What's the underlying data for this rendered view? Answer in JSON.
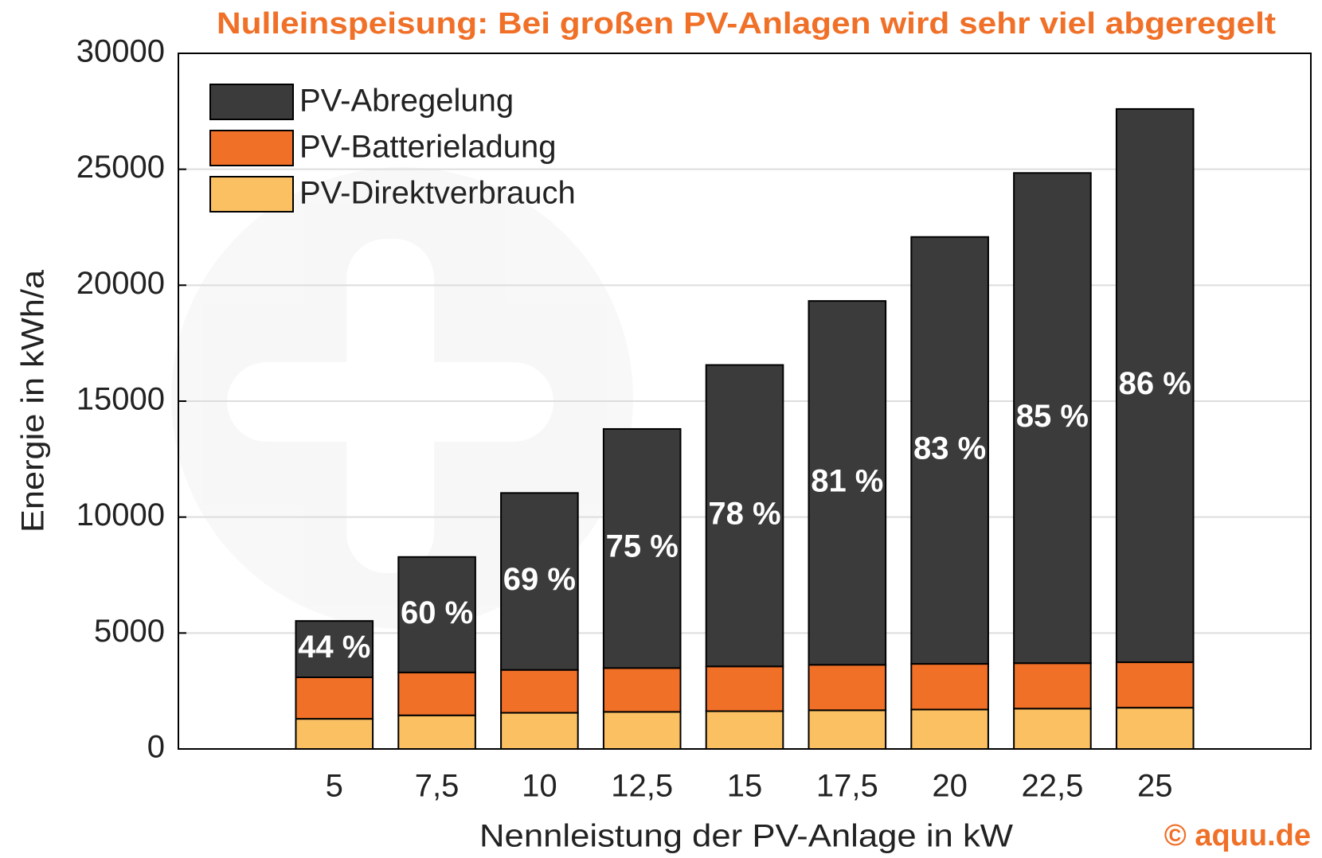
{
  "chart_data": {
    "type": "stacked_bar",
    "title": "Nulleinspeisung: Bei großen PV-Anlagen wird sehr viel abgeregelt",
    "x_label": "Nennleistung der PV-Anlage in kW",
    "y_label": "Energie in kWh/a",
    "source": "© aquu.de",
    "categories": [
      "5",
      "7,5",
      "10",
      "12,5",
      "15",
      "17,5",
      "20",
      "22,5",
      "25"
    ],
    "series": [
      {
        "name": "PV-Direktverbrauch",
        "color": "#fac062",
        "values": [
          1300,
          1450,
          1560,
          1600,
          1630,
          1670,
          1700,
          1740,
          1780
        ]
      },
      {
        "name": "PV-Batterieladung",
        "color": "#f07028",
        "values": [
          1790,
          1850,
          1850,
          1890,
          1930,
          1960,
          1970,
          1960,
          1960
        ]
      },
      {
        "name": "PV-Abregelung",
        "color": "#3b3b3b",
        "values": [
          2430,
          4980,
          7630,
          10310,
          13000,
          15690,
          18410,
          21140,
          23860
        ]
      }
    ],
    "share_labels": [
      "44 %",
      "60 %",
      "69 %",
      "75 %",
      "78 %",
      "81 %",
      "83 %",
      "85 %",
      "86 %"
    ],
    "ylim": [
      0,
      30000
    ],
    "yticks": [
      0,
      5000,
      10000,
      15000,
      20000,
      25000,
      30000
    ],
    "grid": true
  }
}
